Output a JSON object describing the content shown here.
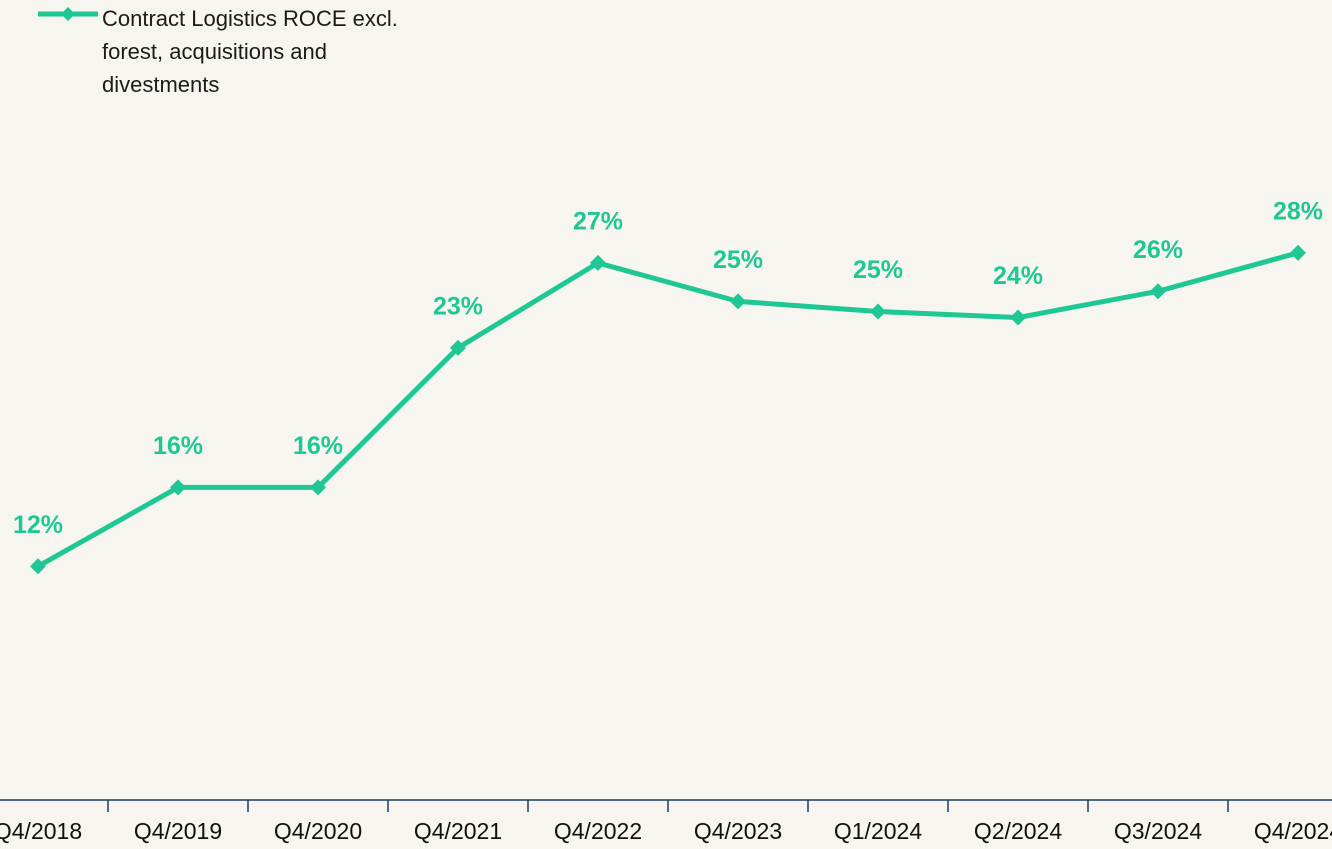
{
  "chart_data": {
    "type": "line",
    "categories": [
      "Q4/2018",
      "Q4/2019",
      "Q4/2020",
      "Q4/2021",
      "Q4/2022",
      "Q4/2023",
      "Q1/2024",
      "Q2/2024",
      "Q3/2024",
      "Q4/2024"
    ],
    "series": [
      {
        "name": "Contract Logistics ROCE excl. forest, acquisitions and divestments",
        "color": "#1ec794",
        "values": [
          12.0,
          15.9,
          15.9,
          22.8,
          27.0,
          25.1,
          24.6,
          24.3,
          25.6,
          27.5
        ],
        "value_labels": [
          "12%",
          "16%",
          "16%",
          "23%",
          "27%",
          "25%",
          "25%",
          "24%",
          "26%",
          "28%"
        ]
      }
    ],
    "ylim": [
      0,
      40
    ],
    "legend": "top-left"
  }
}
